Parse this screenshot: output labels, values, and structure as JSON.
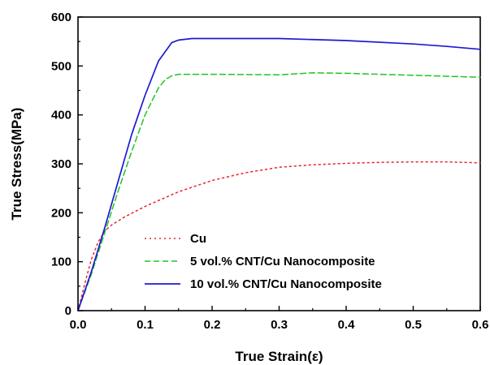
{
  "chart_data": {
    "type": "line",
    "xlabel": "True Strain(ε)",
    "ylabel": "True Stress(MPa)",
    "xlim": [
      0.0,
      0.6
    ],
    "ylim": [
      0,
      600
    ],
    "x_ticks": [
      0.0,
      0.1,
      0.2,
      0.3,
      0.4,
      0.5,
      0.6
    ],
    "x_tick_labels": [
      "0.0",
      "0.1",
      "0.2",
      "0.3",
      "0.4",
      "0.5",
      "0.6"
    ],
    "y_ticks": [
      0,
      100,
      200,
      300,
      400,
      500,
      600
    ],
    "y_tick_labels": [
      "0",
      "100",
      "200",
      "300",
      "400",
      "500",
      "600"
    ],
    "grid": false,
    "legend_position": "bottom-right",
    "series": [
      {
        "name": "Cu",
        "color": "#e8262b",
        "line_style": "dotted",
        "x": [
          0,
          0.01,
          0.02,
          0.03,
          0.04,
          0.05,
          0.07,
          0.1,
          0.15,
          0.2,
          0.25,
          0.3,
          0.35,
          0.4,
          0.45,
          0.5,
          0.55,
          0.6
        ],
        "y": [
          0,
          55,
          105,
          140,
          163,
          175,
          192,
          213,
          243,
          266,
          282,
          293,
          298,
          301,
          303,
          304,
          304,
          302
        ]
      },
      {
        "name": "5 vol.% CNT/Cu Nanocomposite",
        "color": "#22c326",
        "line_style": "dashed",
        "x": [
          0,
          0.02,
          0.04,
          0.06,
          0.08,
          0.1,
          0.12,
          0.13,
          0.14,
          0.15,
          0.2,
          0.3,
          0.35,
          0.4,
          0.5,
          0.6
        ],
        "y": [
          0,
          75,
          160,
          245,
          325,
          400,
          455,
          472,
          480,
          483,
          483,
          482,
          486,
          485,
          481,
          477
        ]
      },
      {
        "name": "10 vol.% CNT/Cu Nanocomposite",
        "color": "#1b1bd1",
        "line_style": "solid",
        "x": [
          0,
          0.02,
          0.04,
          0.06,
          0.08,
          0.1,
          0.12,
          0.14,
          0.15,
          0.17,
          0.2,
          0.3,
          0.4,
          0.5,
          0.55,
          0.6
        ],
        "y": [
          0,
          80,
          170,
          265,
          360,
          440,
          510,
          548,
          553,
          556,
          556,
          556,
          552,
          545,
          540,
          534
        ]
      }
    ]
  }
}
